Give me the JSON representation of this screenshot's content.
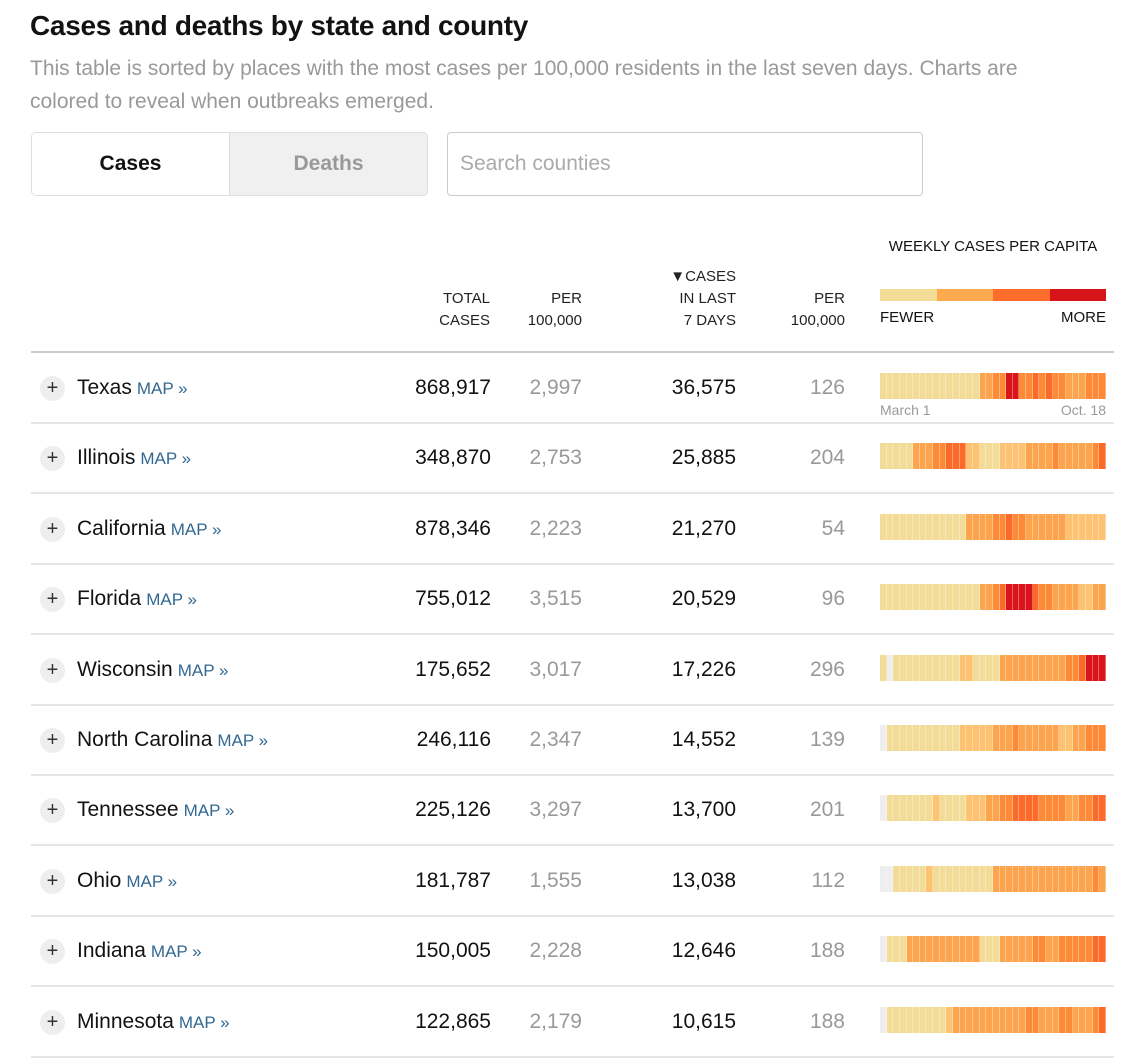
{
  "title": "Cases and deaths by state and county",
  "subtitle": "This table is sorted by places with the most cases per 100,000 residents in the last seven days. Charts are colored to reveal when outbreaks emerged.",
  "toggle": {
    "cases": "Cases",
    "deaths": "Deaths",
    "active": "Cases"
  },
  "search": {
    "placeholder": "Search counties",
    "value": ""
  },
  "headers": {
    "total_l1": "TOTAL",
    "total_l2": "CASES",
    "per_l1": "PER",
    "per_l2": "100,000",
    "last7_l1": "▼CASES",
    "last7_l2": "IN LAST",
    "last7_l3": "7 DAYS",
    "per7_l1": "PER",
    "per7_l2": "100,000",
    "weekly": "WEEKLY CASES PER CAPITA",
    "fewer": "FEWER",
    "more": "MORE"
  },
  "legend_colors": [
    "#f2dc96",
    "#fda94e",
    "#fc6c2b",
    "#d7141a"
  ],
  "level_colors": [
    "#eeeeee",
    "#f3dc98",
    "#fdc272",
    "#fda54e",
    "#fc8a36",
    "#fb6a28",
    "#d9141b"
  ],
  "map_label": "MAP »",
  "date_start": "March 1",
  "date_end": "Oct. 18",
  "rows": [
    {
      "name": "Texas",
      "total": "868,917",
      "per": "2,997",
      "last7": "36,575",
      "per7": "126",
      "weekly": [
        1,
        1,
        1,
        1,
        1,
        1,
        1,
        1,
        1,
        1,
        1,
        1,
        1,
        1,
        1,
        3,
        3,
        4,
        4,
        6,
        6,
        4,
        4,
        5,
        4,
        5,
        4,
        4,
        3,
        3,
        3,
        4,
        4,
        4
      ]
    },
    {
      "name": "Illinois",
      "total": "348,870",
      "per": "2,753",
      "last7": "25,885",
      "per7": "204",
      "weekly": [
        1,
        1,
        1,
        1,
        1,
        3,
        3,
        3,
        4,
        4,
        5,
        5,
        5,
        2,
        2,
        1,
        1,
        1,
        2,
        2,
        2,
        2,
        3,
        3,
        3,
        3,
        4,
        3,
        3,
        3,
        3,
        3,
        4,
        5
      ]
    },
    {
      "name": "California",
      "total": "878,346",
      "per": "2,223",
      "last7": "21,270",
      "per7": "54",
      "weekly": [
        1,
        1,
        1,
        1,
        1,
        1,
        1,
        1,
        1,
        1,
        1,
        1,
        1,
        3,
        3,
        3,
        3,
        4,
        4,
        5,
        4,
        4,
        3,
        3,
        3,
        3,
        3,
        3,
        2,
        2,
        2,
        2,
        2,
        2
      ]
    },
    {
      "name": "Florida",
      "total": "755,012",
      "per": "3,515",
      "last7": "20,529",
      "per7": "96",
      "weekly": [
        1,
        1,
        1,
        1,
        1,
        1,
        1,
        1,
        1,
        1,
        1,
        1,
        1,
        1,
        1,
        3,
        3,
        4,
        5,
        6,
        6,
        6,
        6,
        5,
        4,
        4,
        3,
        3,
        3,
        3,
        2,
        2,
        3,
        3
      ]
    },
    {
      "name": "Wisconsin",
      "total": "175,652",
      "per": "3,017",
      "last7": "17,226",
      "per7": "296",
      "weekly": [
        1,
        0,
        1,
        1,
        1,
        1,
        1,
        1,
        1,
        1,
        1,
        1,
        2,
        2,
        1,
        1,
        1,
        1,
        3,
        3,
        3,
        3,
        3,
        3,
        3,
        3,
        3,
        3,
        4,
        4,
        5,
        6,
        6,
        6
      ]
    },
    {
      "name": "North Carolina",
      "total": "246,116",
      "per": "2,347",
      "last7": "14,552",
      "per7": "139",
      "weekly": [
        0,
        1,
        1,
        1,
        1,
        1,
        1,
        1,
        1,
        1,
        1,
        1,
        2,
        2,
        2,
        2,
        2,
        3,
        3,
        3,
        4,
        3,
        3,
        3,
        3,
        3,
        3,
        2,
        2,
        3,
        3,
        4,
        4,
        4
      ]
    },
    {
      "name": "Tennessee",
      "total": "225,126",
      "per": "3,297",
      "last7": "13,700",
      "per7": "201",
      "weekly": [
        0,
        1,
        1,
        1,
        1,
        1,
        1,
        1,
        2,
        1,
        1,
        1,
        1,
        2,
        2,
        2,
        3,
        3,
        4,
        4,
        5,
        5,
        5,
        5,
        4,
        4,
        4,
        4,
        3,
        3,
        4,
        4,
        5,
        5
      ]
    },
    {
      "name": "Ohio",
      "total": "181,787",
      "per": "1,555",
      "last7": "13,038",
      "per7": "112",
      "weekly": [
        0,
        0,
        1,
        1,
        1,
        1,
        1,
        2,
        1,
        1,
        1,
        1,
        1,
        1,
        1,
        1,
        1,
        3,
        3,
        3,
        3,
        3,
        3,
        3,
        3,
        3,
        3,
        3,
        3,
        3,
        3,
        3,
        4,
        3
      ]
    },
    {
      "name": "Indiana",
      "total": "150,005",
      "per": "2,228",
      "last7": "12,646",
      "per7": "188",
      "weekly": [
        0,
        1,
        1,
        1,
        3,
        3,
        3,
        3,
        3,
        3,
        3,
        3,
        3,
        3,
        3,
        1,
        1,
        1,
        3,
        3,
        3,
        3,
        3,
        4,
        4,
        3,
        3,
        4,
        4,
        4,
        4,
        4,
        5,
        5
      ]
    },
    {
      "name": "Minnesota",
      "total": "122,865",
      "per": "2,179",
      "last7": "10,615",
      "per7": "188",
      "weekly": [
        0,
        1,
        1,
        1,
        1,
        1,
        1,
        1,
        1,
        1,
        2,
        3,
        3,
        3,
        3,
        3,
        3,
        3,
        3,
        3,
        3,
        3,
        4,
        4,
        3,
        3,
        3,
        4,
        4,
        3,
        3,
        3,
        4,
        5
      ]
    }
  ]
}
